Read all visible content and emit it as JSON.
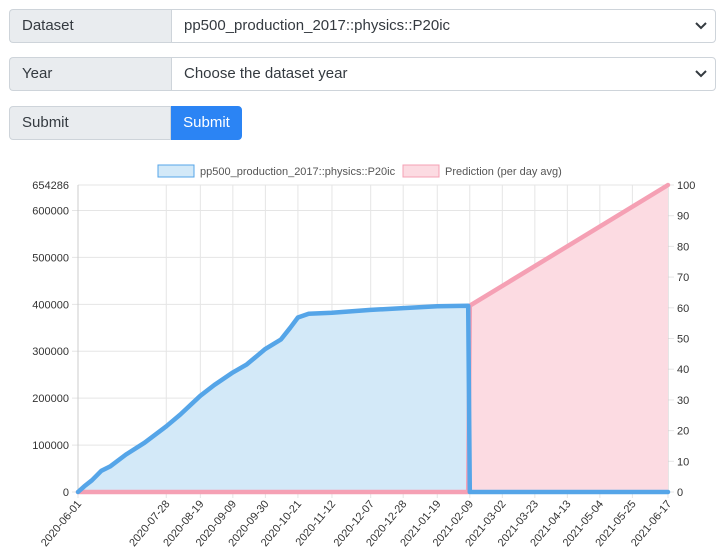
{
  "form": {
    "dataset_label": "Dataset",
    "dataset_value": "pp500_production_2017::physics::P20ic",
    "year_label": "Year",
    "year_value": "Choose the dataset year",
    "submit_label": "Submit",
    "submit_button": "Submit"
  },
  "colors": {
    "actual_line": "#55a5e8",
    "actual_fill": "#d3e9f8",
    "prediction_line": "#f5a0b4",
    "prediction_fill": "#fcdbe2",
    "button": "#2b84f4"
  },
  "chart_data": {
    "type": "line",
    "legend": [
      "pp500_production_2017::physics::P20ic",
      "Prediction (per day avg)"
    ],
    "legend_position": "top",
    "grid": true,
    "x_ticks": [
      "2020-06-01",
      "2020-07-28",
      "2020-08-19",
      "2020-09-09",
      "2020-09-30",
      "2020-10-21",
      "2020-11-12",
      "2020-12-07",
      "2020-12-28",
      "2021-01-19",
      "2021-02-09",
      "2021-03-02",
      "2021-03-23",
      "2021-04-13",
      "2021-05-04",
      "2021-05-25",
      "2021-06-17"
    ],
    "y_left_ticks": [
      0,
      100000,
      200000,
      300000,
      400000,
      500000,
      600000,
      654286
    ],
    "y_left_range": [
      0,
      654286
    ],
    "y_right_ticks": [
      0,
      10,
      20,
      30,
      40,
      50,
      60,
      70,
      80,
      90,
      100
    ],
    "y_right_range": [
      0,
      100
    ],
    "series": [
      {
        "name": "pp500_production_2017::physics::P20ic",
        "axis": "left",
        "points": [
          [
            "2020-06-01",
            0
          ],
          [
            "2020-06-05",
            12000
          ],
          [
            "2020-06-10",
            25000
          ],
          [
            "2020-06-16",
            45000
          ],
          [
            "2020-06-22",
            55000
          ],
          [
            "2020-07-02",
            80000
          ],
          [
            "2020-07-14",
            105000
          ],
          [
            "2020-07-28",
            140000
          ],
          [
            "2020-08-06",
            165000
          ],
          [
            "2020-08-19",
            205000
          ],
          [
            "2020-08-28",
            228000
          ],
          [
            "2020-09-09",
            255000
          ],
          [
            "2020-09-18",
            272000
          ],
          [
            "2020-09-30",
            305000
          ],
          [
            "2020-10-10",
            325000
          ],
          [
            "2020-10-16",
            350000
          ],
          [
            "2020-10-21",
            372000
          ],
          [
            "2020-10-28",
            380000
          ],
          [
            "2020-11-12",
            382000
          ],
          [
            "2020-12-07",
            388000
          ],
          [
            "2020-12-28",
            392000
          ],
          [
            "2021-01-19",
            396000
          ],
          [
            "2021-02-08",
            397000
          ],
          [
            "2021-02-09",
            0
          ],
          [
            "2021-06-17",
            0
          ]
        ]
      },
      {
        "name": "Prediction (per day avg)",
        "axis": "right",
        "points": [
          [
            "2020-06-01",
            0
          ],
          [
            "2021-02-08",
            0
          ],
          [
            "2021-02-09",
            60.7
          ],
          [
            "2021-06-17",
            100
          ]
        ]
      }
    ]
  }
}
